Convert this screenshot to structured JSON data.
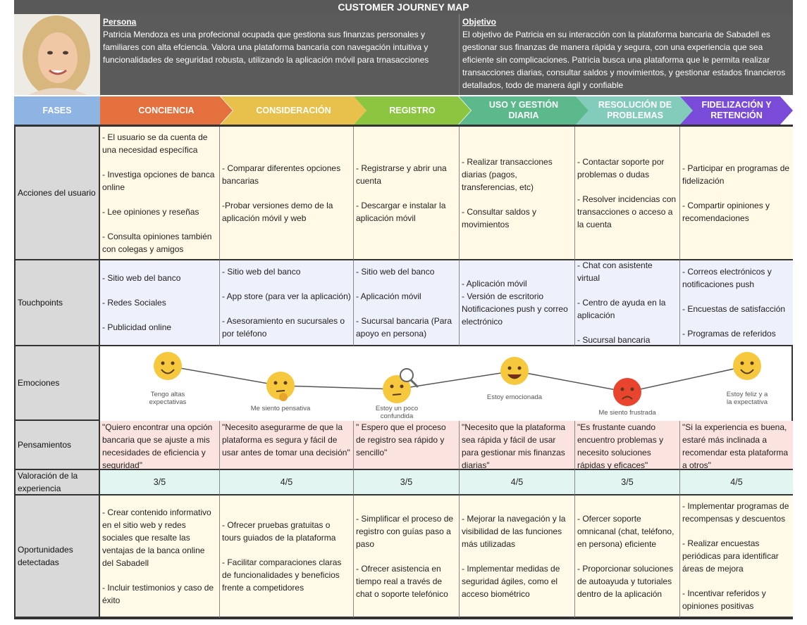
{
  "header": {
    "title": "CUSTOMER JOURNEY MAP"
  },
  "persona": {
    "heading": "Persona",
    "text": "Patricia Mendoza es una profecional ocupada que gestiona sus finanzas personales y familiares con alta efciencia. Valora una plataforma bancaria con navegación intuitiva y funcionalidades de seguridad robusta, utilizando la aplicación móvil para trnasacciones"
  },
  "objective": {
    "heading": "Objetivo",
    "text": "El objetivo de Patricia en su interacción con la plataforma bancaria de Sabadell es gestionar sus finanzas de manera rápida y segura, con una experiencia que sea eficiente sin complicaciones. Patricia busca una plataforma  que le permita realizar transacciones diarias, consultar saldos y movimientos, y gestionar estados financieros detallados, todo de manera ágil y confiable"
  },
  "phases": {
    "label": "FASES",
    "items": [
      "CONCIENCIA",
      "CONSIDERACIÓN",
      "REGISTRO",
      "USO Y GESTIÓN DIARIA",
      "RESOLUCIÓN DE PROBLEMAS",
      "FIDELIZACIÓN Y RETENCIÓN"
    ]
  },
  "actions": {
    "label": "Acciones del usuario",
    "cells": [
      [
        "- El usuario se da cuenta de una necesidad específica",
        "- Investiga opciones de banca online",
        "- Lee opiniones y reseñas",
        "- Consulta opiniones también con colegas y amigos"
      ],
      [
        "- Comparar diferentes opciones bancarias",
        "-Probar versiones demo de la aplicación móvil y web"
      ],
      [
        "- Registrarse y abrir una cuenta",
        "- Descargar e instalar la aplicación móvil"
      ],
      [
        "- Realizar transacciones diarias (pagos, transferencias, etc)",
        "- Consultar saldos y movimientos"
      ],
      [
        "- Contactar soporte por problemas o dudas",
        "- Resolver incidencias con transacciones o acceso a la cuenta"
      ],
      [
        "- Participar en programas de fidelización",
        "- Compartir opiniones y recomendaciones"
      ]
    ]
  },
  "touchpoints": {
    "label": "Touchpoints",
    "cells": [
      [
        "- Sitio web del banco",
        "- Redes Sociales",
        "- Publicidad online"
      ],
      [
        "- Sitio web del banco",
        "- App store (para ver la aplicación)",
        "- Asesoramiento en sucursales o por teléfono"
      ],
      [
        "- Sitio web del banco",
        "- Aplicación móvil",
        "- Sucursal bancaria (Para apoyo en persona)"
      ],
      [
        "- Aplicación móvil\n- Versión de escritorio\nNotificaciones push y correo electrónico"
      ],
      [
        "- Chat con asistente virtual",
        "- Centro de ayuda en la aplicación",
        "- Sucursal bancaria"
      ],
      [
        "- Correos electrónicos y notificaciones push",
        "- Encuestas de satisfacción",
        "- Programas de referidos"
      ]
    ]
  },
  "emotions": {
    "label": "Emociones",
    "items": [
      "Tengo altas expectativas",
      "Me siento pensativa",
      "Estoy un poco confundida",
      "Estoy emocionada",
      "Me siento frustrada",
      "Estoy feliz y a la expectativa"
    ]
  },
  "thoughts": {
    "label": "Pensamientos",
    "cells": [
      [
        "\"Quiero encontrar una opción bancaria que se ajuste a mis necesidades de eficiencia y seguridad\""
      ],
      [
        "\"Necesito asegurarme de que la plataforma es segura y fácil de usar antes de tomar una decisión\""
      ],
      [
        "\" Espero que el proceso de registro sea rápido y sencillo\""
      ],
      [
        "\"Necesito que la plataforma sea rápida y fácil de usar para gestionar mis finanzas diarias\""
      ],
      [
        "\"Es frustante cuando encuentro problemas y necesito soluciones rápidas y eficaces\""
      ],
      [
        "\"Si la experiencia es buena, estaré más inclinada a recomendar esta plataforma a otros\""
      ]
    ]
  },
  "rating": {
    "label": "Valoración de la experiencia",
    "cells": [
      [
        "3/5"
      ],
      [
        "4/5"
      ],
      [
        "3/5"
      ],
      [
        "4/5"
      ],
      [
        "3/5"
      ],
      [
        "4/5"
      ]
    ]
  },
  "opportunities": {
    "label": "Oportunidades detectadas",
    "cells": [
      [
        "- Crear contenido informativo en el sitio web y redes sociales que resalte las ventajas de la banca online del Sabadell",
        "- Incluir testimonios y caso de éxito"
      ],
      [
        "- Ofrecer pruebas gratuitas o tours guiados de la plataforma",
        "- Facilitar comparaciones claras de funcionalidades y beneficios frente a competidores"
      ],
      [
        "- Simplificar el proceso de registro con guías paso a paso",
        "- Ofrecer asistencia en tiempo real a través de chat o soporte telefónico"
      ],
      [
        "- Mejorar la navegación y la visibilidad de las funciones más utilizadas",
        "- Implementar medidas de seguridad ágiles, como el acceso biométrico"
      ],
      [
        "- Ofercer soporte omnicanal (chat, teléfono, en persona) eficiente",
        "- Proporcionar soluciones de autoayuda y tutoriales dentro de la aplicación"
      ],
      [
        "- Implementar programas de recompensas y descuentos",
        "- Realizar encuestas periódicas para identificar áreas de mejora",
        "- Incentivar referidos y opiniones positivas"
      ]
    ]
  }
}
